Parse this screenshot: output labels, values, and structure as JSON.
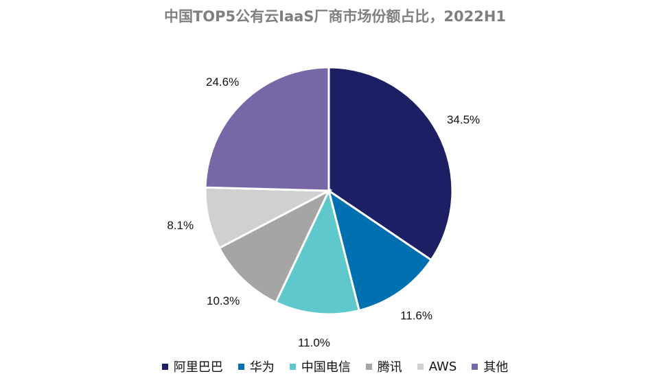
{
  "chart_data": {
    "type": "pie",
    "title": "中国TOP5公有云IaaS厂商市场份额占比，2022H1",
    "series": [
      {
        "name": "阿里巴巴",
        "value": 34.5,
        "label": "34.5%",
        "color": "#1c1f63"
      },
      {
        "name": "华为",
        "value": 11.6,
        "label": "11.6%",
        "color": "#0070b0"
      },
      {
        "name": "中国电信",
        "value": 11.0,
        "label": "11.0%",
        "color": "#5fc8cc"
      },
      {
        "name": "腾讯",
        "value": 10.3,
        "label": "10.3%",
        "color": "#a5a5a5"
      },
      {
        "name": "AWS",
        "value": 8.1,
        "label": "8.1%",
        "color": "#d0d0d0"
      },
      {
        "name": "其他",
        "value": 24.6,
        "label": "24.6%",
        "color": "#7767a6"
      }
    ],
    "legend_position": "bottom"
  }
}
